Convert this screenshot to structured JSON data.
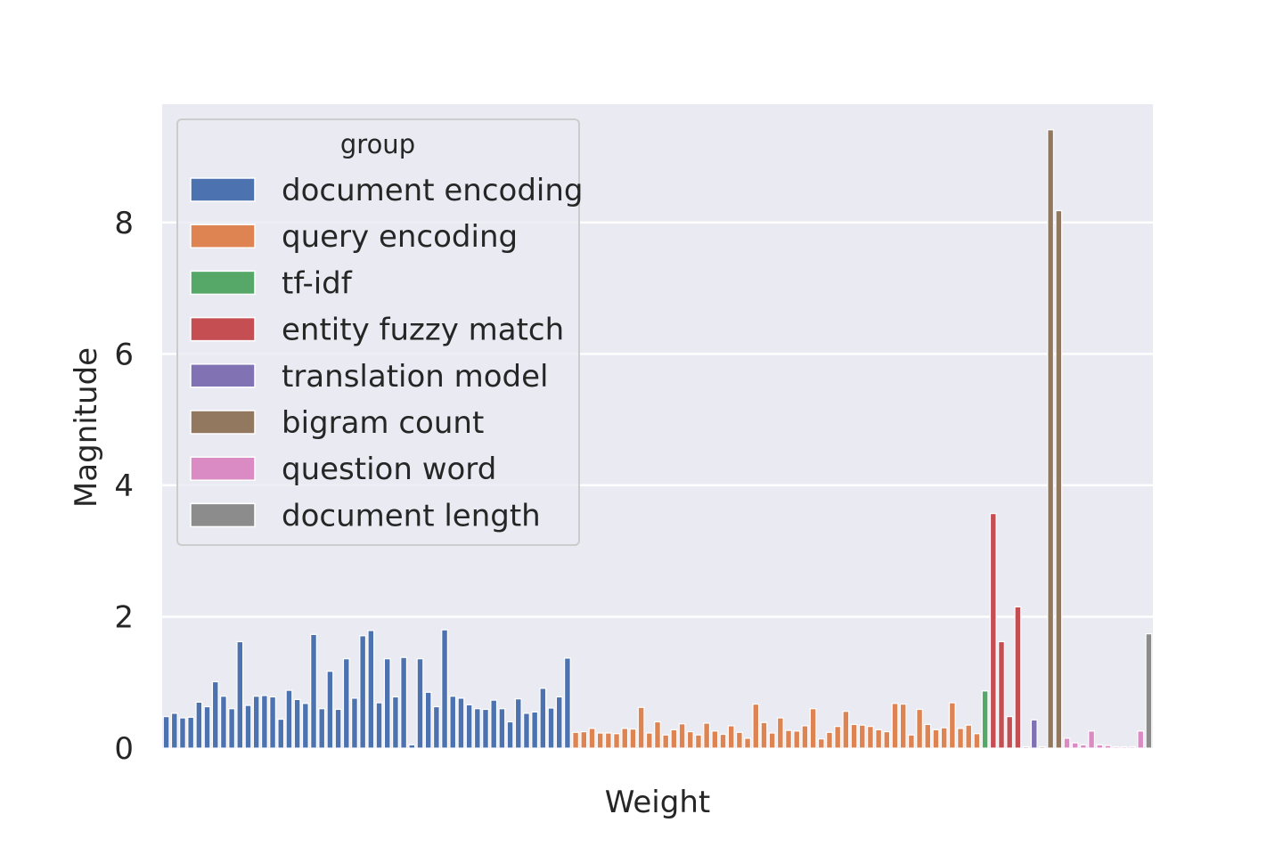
{
  "chart_data": {
    "type": "bar",
    "xlabel": "Weight",
    "ylabel": "Magnitude",
    "ylim": [
      0,
      9.8
    ],
    "yticks": [
      0,
      2,
      4,
      6,
      8
    ],
    "grid": true,
    "legend_placement": "upper-left",
    "legend_title": "group",
    "series": [
      {
        "name": "document encoding",
        "color": "#4c72b0",
        "values": [
          0.48,
          0.53,
          0.46,
          0.47,
          0.7,
          0.63,
          1.01,
          0.79,
          0.6,
          1.62,
          0.65,
          0.79,
          0.8,
          0.78,
          0.44,
          0.88,
          0.74,
          0.68,
          1.73,
          0.6,
          1.17,
          0.59,
          1.36,
          0.76,
          1.71,
          1.79,
          0.69,
          1.36,
          0.78,
          1.38,
          0.05,
          1.36,
          0.85,
          0.63,
          1.8,
          0.79,
          0.76,
          0.66,
          0.6,
          0.59,
          0.73,
          0.6,
          0.4,
          0.75,
          0.53,
          0.55,
          0.91,
          0.61,
          0.78,
          1.37
        ]
      },
      {
        "name": "query encoding",
        "color": "#dd8452",
        "values": [
          0.24,
          0.25,
          0.3,
          0.23,
          0.23,
          0.22,
          0.3,
          0.29,
          0.62,
          0.23,
          0.4,
          0.2,
          0.28,
          0.37,
          0.25,
          0.2,
          0.38,
          0.26,
          0.21,
          0.34,
          0.24,
          0.15,
          0.67,
          0.39,
          0.23,
          0.46,
          0.27,
          0.26,
          0.34,
          0.6,
          0.14,
          0.24,
          0.33,
          0.56,
          0.36,
          0.35,
          0.33,
          0.28,
          0.25,
          0.68,
          0.67,
          0.2,
          0.59,
          0.36,
          0.28,
          0.31,
          0.69,
          0.3,
          0.35,
          0.22
        ]
      },
      {
        "name": "tf-idf",
        "color": "#55a868",
        "values": [
          0.87
        ]
      },
      {
        "name": "entity fuzzy match",
        "color": "#c44e52",
        "values": [
          3.57,
          1.62,
          0.48,
          2.15
        ]
      },
      {
        "name": "translation model",
        "color": "#8172b3",
        "values": [
          0.02,
          0.43
        ]
      },
      {
        "name": "bigram count",
        "color": "#937860",
        "values": [
          0.02,
          9.41,
          8.18
        ]
      },
      {
        "name": "question word",
        "color": "#da8bc3",
        "values": [
          0.15,
          0.08,
          0.05,
          0.26,
          0.05,
          0.04,
          0.02,
          0.02,
          0.02,
          0.26
        ]
      },
      {
        "name": "document length",
        "color": "#8c8c8c",
        "values": [
          1.74
        ]
      }
    ]
  }
}
